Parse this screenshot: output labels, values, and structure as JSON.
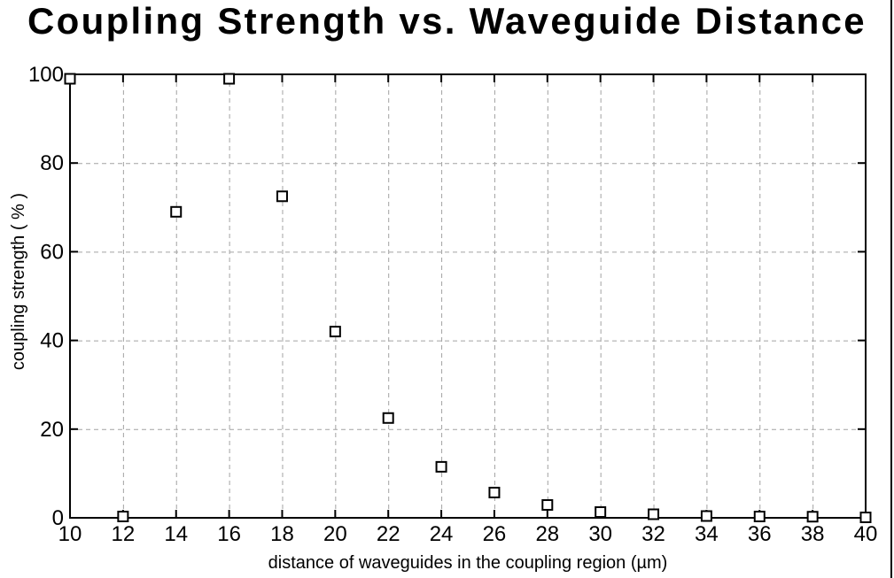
{
  "title": "Coupling Strength vs. Waveguide Distance",
  "chart_data": {
    "type": "scatter",
    "x": [
      10,
      12,
      14,
      16,
      18,
      20,
      22,
      24,
      26,
      28,
      30,
      32,
      34,
      36,
      38,
      40
    ],
    "y": [
      99,
      0.3,
      69,
      99,
      72.5,
      42,
      22.5,
      11.5,
      5.7,
      2.9,
      1.3,
      0.8,
      0.4,
      0.3,
      0.25,
      0.1
    ],
    "title": "Coupling Strength vs. Waveguide Distance",
    "xlabel": "distance of waveguides in the coupling region (µm)",
    "ylabel": "coupling strength ( % )",
    "xlim": [
      10,
      40
    ],
    "ylim": [
      0,
      100
    ],
    "xticks": [
      10,
      12,
      14,
      16,
      18,
      20,
      22,
      24,
      26,
      28,
      30,
      32,
      34,
      36,
      38,
      40
    ],
    "yticks": [
      0,
      20,
      40,
      60,
      80,
      100
    ],
    "grid": true,
    "grid_style": "dashed",
    "grid_color": "#a2a2a2",
    "legend": null,
    "marker": "open-square",
    "marker_color": "#000000",
    "axis_color": "#000000"
  }
}
